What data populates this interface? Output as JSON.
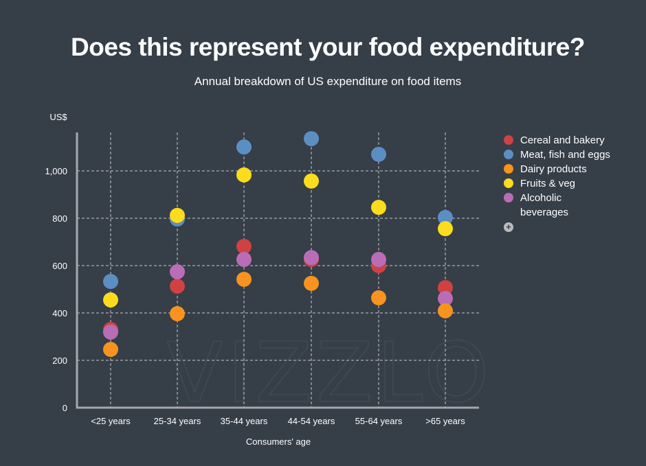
{
  "header": {
    "title": "Does this represent your food expenditure?",
    "subtitle": "Annual breakdown of US expenditure on  food items"
  },
  "legend": {
    "more_icon": "plus-circle-icon",
    "more_glyph": "+"
  },
  "watermark": "VIZZLO",
  "chart_data": {
    "type": "scatter",
    "title": "Does this represent your food expenditure?",
    "subtitle": "Annual breakdown of US expenditure on  food items",
    "xlabel": "Consumers' age",
    "ylabel": "US$",
    "categories": [
      "<25 years",
      "25-34 years",
      "35-44 years",
      "44-54 years",
      "55-64 years",
      ">65 years"
    ],
    "ylim": [
      0,
      1150
    ],
    "yticks": [
      0,
      200,
      400,
      600,
      800,
      1000
    ],
    "ytick_labels": [
      "0",
      "200",
      "400",
      "600",
      "800",
      "1,000"
    ],
    "grid": true,
    "legend_position": "right",
    "series": [
      {
        "name": "Cereal and bakery",
        "color": "#d04242",
        "values": [
          330,
          513,
          681,
          626,
          600,
          507
        ]
      },
      {
        "name": "Meat, fish and eggs",
        "color": "#5b8fc4",
        "values": [
          533,
          797,
          1101,
          1136,
          1070,
          803
        ]
      },
      {
        "name": "Dairy products",
        "color": "#f7931e",
        "values": [
          246,
          397,
          542,
          525,
          464,
          409
        ]
      },
      {
        "name": "Fruits & veg",
        "color": "#fcdc1c",
        "values": [
          455,
          812,
          983,
          957,
          846,
          756
        ]
      },
      {
        "name": "Alcoholic beverages",
        "color": "#b96db7",
        "values": [
          319,
          574,
          626,
          634,
          626,
          461
        ]
      }
    ],
    "legend_labels": [
      "Cereal and bakery",
      "Meat, fish and eggs",
      "Dairy products",
      "Fruits & veg",
      "Alcoholic\nbeverages"
    ]
  }
}
